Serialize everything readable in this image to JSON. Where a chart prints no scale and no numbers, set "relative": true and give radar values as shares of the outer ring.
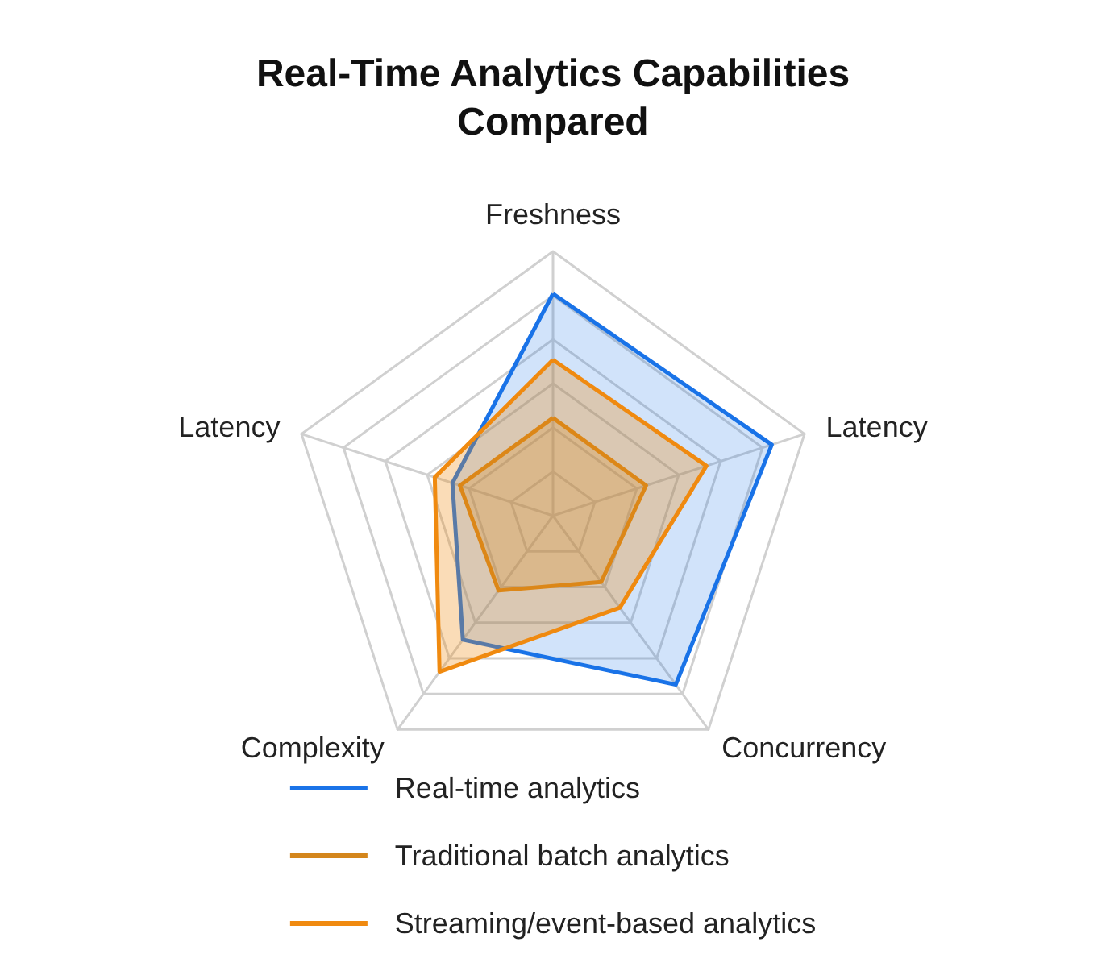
{
  "chart_data": {
    "type": "radar",
    "title": "Real-Time Analytics Capabilities\nCompared",
    "relative": true,
    "categories": [
      "Freshness",
      "Latency",
      "Concurrency",
      "Complexity",
      "Latency"
    ],
    "legend": "bottom",
    "series": [
      {
        "name": "Real-time analytics",
        "color": "#1a73e8",
        "values": [
          0.84,
          0.87,
          0.79,
          0.58,
          0.4
        ]
      },
      {
        "name": "Traditional batch analytics",
        "color": "#d4861c",
        "values": [
          0.37,
          0.37,
          0.31,
          0.35,
          0.37
        ]
      },
      {
        "name": "Streaming/event-based analytics",
        "color": "#f08a10",
        "values": [
          0.59,
          0.61,
          0.43,
          0.73,
          0.47
        ]
      }
    ]
  }
}
